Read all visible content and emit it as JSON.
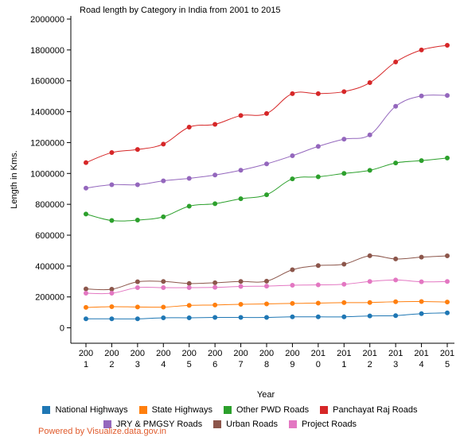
{
  "chart_data": {
    "type": "line",
    "title": "Road length by Category in India from 2001 to 2015",
    "xlabel": "Year",
    "ylabel": "Length in Kms.",
    "ylim": [
      -100000,
      2000000
    ],
    "yticks": [
      "2000000",
      "1800000",
      "1600000",
      "1400000",
      "1200000",
      "1000000",
      "800000",
      "600000",
      "400000",
      "200000",
      "0"
    ],
    "categories": [
      [
        "200",
        "1"
      ],
      [
        "200",
        "2"
      ],
      [
        "200",
        "3"
      ],
      [
        "200",
        "4"
      ],
      [
        "200",
        "5"
      ],
      [
        "200",
        "6"
      ],
      [
        "200",
        "7"
      ],
      [
        "200",
        "8"
      ],
      [
        "200",
        "9"
      ],
      [
        "201",
        "0"
      ],
      [
        "201",
        "1"
      ],
      [
        "201",
        "2"
      ],
      [
        "201",
        "3"
      ],
      [
        "201",
        "4"
      ],
      [
        "201",
        "5"
      ]
    ],
    "grid": false,
    "legend_position": "bottom",
    "series": [
      {
        "name": "National Highways",
        "color": "#1f77b4",
        "values": [
          58000,
          58000,
          58000,
          65000,
          65000,
          67000,
          67000,
          67000,
          71000,
          71000,
          71000,
          77000,
          79000,
          92000,
          97000
        ]
      },
      {
        "name": "State Highways",
        "color": "#ff7f0e",
        "values": [
          132000,
          137000,
          135000,
          134000,
          145000,
          148000,
          152000,
          155000,
          158000,
          160000,
          163000,
          164000,
          169000,
          170000,
          167000
        ]
      },
      {
        "name": "Other PWD Roads",
        "color": "#2ca02c",
        "values": [
          737000,
          695000,
          698000,
          719000,
          788000,
          804000,
          836000,
          862000,
          965000,
          978000,
          1000000,
          1020000,
          1068000,
          1083000,
          1100000
        ]
      },
      {
        "name": "Panchayat Raj Roads",
        "color": "#d62728",
        "values": [
          1070000,
          1135000,
          1155000,
          1190000,
          1300000,
          1318000,
          1375000,
          1388000,
          1517000,
          1517000,
          1530000,
          1588000,
          1722000,
          1800000,
          1830000
        ]
      },
      {
        "name": "JRY & PMGSY Roads",
        "color": "#9467bd",
        "values": [
          905000,
          927000,
          927000,
          952000,
          968000,
          990000,
          1021000,
          1062000,
          1115000,
          1175000,
          1222000,
          1250000,
          1435000,
          1502000,
          1505000
        ]
      },
      {
        "name": "Urban Roads",
        "color": "#8c564b",
        "values": [
          252000,
          250000,
          298000,
          300000,
          287000,
          292000,
          300000,
          302000,
          376000,
          403000,
          412000,
          467000,
          446000,
          458000,
          466000
        ]
      },
      {
        "name": "Project Roads",
        "color": "#e377c2",
        "values": [
          224000,
          224000,
          260000,
          260000,
          260000,
          262000,
          268000,
          270000,
          276000,
          278000,
          282000,
          300000,
          310000,
          298000,
          300000
        ]
      }
    ]
  },
  "credit": "Powered by Visualize.data.gov.in"
}
